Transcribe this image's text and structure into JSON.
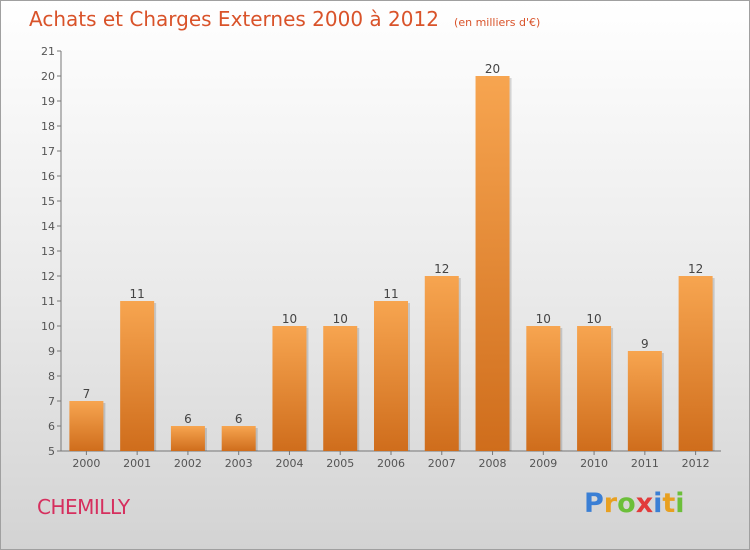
{
  "title": "Achats et Charges Externes 2000 à 2012",
  "unit": "(en milliers d'€)",
  "commune": "CHEMILLY",
  "logo": {
    "text": "Proxiti",
    "letters": [
      {
        "char": "P",
        "color": "#3a7fd5"
      },
      {
        "char": "r",
        "color": "#e8a020"
      },
      {
        "char": "o",
        "color": "#6cbf3a"
      },
      {
        "char": "x",
        "color": "#e23a3a"
      },
      {
        "char": "i",
        "color": "#3a7fd5"
      },
      {
        "char": "t",
        "color": "#e8a020"
      },
      {
        "char": "i",
        "color": "#6cbf3a"
      }
    ]
  },
  "colors": {
    "bar_top": "#f7a550",
    "bar_bottom": "#cf6d1c",
    "accent": "#d9532a"
  },
  "chart_data": {
    "type": "bar",
    "categories": [
      "2000",
      "2001",
      "2002",
      "2003",
      "2004",
      "2005",
      "2006",
      "2007",
      "2008",
      "2009",
      "2010",
      "2011",
      "2012"
    ],
    "values": [
      7,
      11,
      6,
      6,
      10,
      10,
      11,
      12,
      20,
      10,
      10,
      9,
      12
    ],
    "ylim": [
      5,
      21
    ],
    "yticks": [
      5,
      6,
      7,
      8,
      9,
      10,
      11,
      12,
      13,
      14,
      15,
      16,
      17,
      18,
      19,
      20,
      21
    ],
    "grid": false,
    "legend": "none"
  }
}
